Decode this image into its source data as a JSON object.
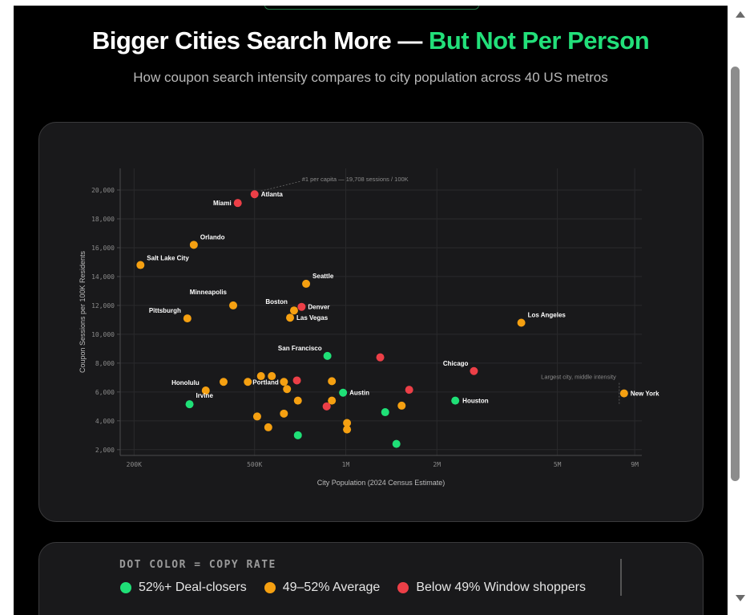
{
  "header": {
    "title_main": "Bigger Cities Search More — ",
    "title_accent": "But Not Per Person",
    "subtitle": "How coupon search intensity compares to city population across 40 US metros"
  },
  "colors": {
    "green": "#1fe077",
    "orange": "#f5a011",
    "red": "#ec3f47",
    "accent": "#22e07a"
  },
  "chart_data": {
    "type": "scatter",
    "xlabel": "City Population (2024 Census Estimate)",
    "ylabel": "Coupon Sessions per 100K Residents",
    "x_scale": "log",
    "xlim": [
      180000,
      9500000
    ],
    "ylim": [
      1600,
      21500
    ],
    "x_ticks": [
      {
        "value": 200000,
        "label": "200K"
      },
      {
        "value": 500000,
        "label": "500K"
      },
      {
        "value": 1000000,
        "label": "1M"
      },
      {
        "value": 2000000,
        "label": "2M"
      },
      {
        "value": 5000000,
        "label": "5M"
      },
      {
        "value": 9000000,
        "label": "9M"
      }
    ],
    "y_ticks": [
      {
        "value": 2000,
        "label": "2,000"
      },
      {
        "value": 4000,
        "label": "4,000"
      },
      {
        "value": 6000,
        "label": "6,000"
      },
      {
        "value": 8000,
        "label": "8,000"
      },
      {
        "value": 10000,
        "label": "10,000"
      },
      {
        "value": 12000,
        "label": "12,000"
      },
      {
        "value": 14000,
        "label": "14,000"
      },
      {
        "value": 16000,
        "label": "16,000"
      },
      {
        "value": 18000,
        "label": "18,000"
      },
      {
        "value": 20000,
        "label": "20,000"
      }
    ],
    "grid": true,
    "annotations": [
      {
        "text": "#1 per capita — 19,708 sessions / 100K"
      },
      {
        "text": "Largest city, middle intensity"
      }
    ],
    "points": [
      {
        "label": "Atlanta",
        "x": 500000,
        "y": 19708,
        "group": "red"
      },
      {
        "label": "Miami",
        "x": 440000,
        "y": 19100,
        "group": "red"
      },
      {
        "label": "Orlando",
        "x": 315000,
        "y": 16200,
        "group": "orange"
      },
      {
        "label": "Salt Lake City",
        "x": 210000,
        "y": 14800,
        "group": "orange"
      },
      {
        "label": "Seattle",
        "x": 740000,
        "y": 13500,
        "group": "orange"
      },
      {
        "label": "Minneapolis",
        "x": 425000,
        "y": 12000,
        "group": "orange"
      },
      {
        "label": "Pittsburgh",
        "x": 300000,
        "y": 11100,
        "group": "orange"
      },
      {
        "label": "Boston",
        "x": 675000,
        "y": 11650,
        "group": "orange"
      },
      {
        "label": "Denver",
        "x": 715000,
        "y": 11900,
        "group": "red"
      },
      {
        "label": "Las Vegas",
        "x": 655000,
        "y": 11150,
        "group": "orange"
      },
      {
        "label": "Los Angeles",
        "x": 3800000,
        "y": 10800,
        "group": "orange"
      },
      {
        "label": "San Francisco",
        "x": 870000,
        "y": 8500,
        "group": "green"
      },
      {
        "label": "",
        "x": 1300000,
        "y": 8400,
        "group": "red"
      },
      {
        "label": "Chicago",
        "x": 2650000,
        "y": 7450,
        "group": "red"
      },
      {
        "label": "New York",
        "x": 8300000,
        "y": 5900,
        "group": "orange"
      },
      {
        "label": "Houston",
        "x": 2300000,
        "y": 5400,
        "group": "green"
      },
      {
        "label": "Honolulu",
        "x": 345000,
        "y": 6100,
        "group": "orange"
      },
      {
        "label": "Irvine",
        "x": 305000,
        "y": 5150,
        "group": "green"
      },
      {
        "label": "Portland",
        "x": 475000,
        "y": 6700,
        "group": "orange"
      },
      {
        "label": "Austin",
        "x": 980000,
        "y": 5950,
        "group": "green"
      },
      {
        "label": "",
        "x": 395000,
        "y": 6700,
        "group": "orange"
      },
      {
        "label": "",
        "x": 525000,
        "y": 7100,
        "group": "orange"
      },
      {
        "label": "",
        "x": 570000,
        "y": 7100,
        "group": "orange"
      },
      {
        "label": "",
        "x": 625000,
        "y": 6700,
        "group": "orange"
      },
      {
        "label": "",
        "x": 690000,
        "y": 6800,
        "group": "red"
      },
      {
        "label": "",
        "x": 640000,
        "y": 6200,
        "group": "orange"
      },
      {
        "label": "",
        "x": 900000,
        "y": 6750,
        "group": "orange"
      },
      {
        "label": "",
        "x": 695000,
        "y": 5400,
        "group": "orange"
      },
      {
        "label": "",
        "x": 900000,
        "y": 5400,
        "group": "orange"
      },
      {
        "label": "",
        "x": 865000,
        "y": 5000,
        "group": "red"
      },
      {
        "label": "",
        "x": 1620000,
        "y": 6150,
        "group": "red"
      },
      {
        "label": "",
        "x": 1530000,
        "y": 5050,
        "group": "orange"
      },
      {
        "label": "",
        "x": 1350000,
        "y": 4600,
        "group": "green"
      },
      {
        "label": "",
        "x": 510000,
        "y": 4300,
        "group": "orange"
      },
      {
        "label": "",
        "x": 625000,
        "y": 4500,
        "group": "orange"
      },
      {
        "label": "",
        "x": 555000,
        "y": 3550,
        "group": "orange"
      },
      {
        "label": "",
        "x": 695000,
        "y": 3000,
        "group": "green"
      },
      {
        "label": "",
        "x": 1010000,
        "y": 3850,
        "group": "orange"
      },
      {
        "label": "",
        "x": 1010000,
        "y": 3400,
        "group": "orange"
      },
      {
        "label": "",
        "x": 1470000,
        "y": 2400,
        "group": "green"
      }
    ]
  },
  "legend": {
    "title": "DOT COLOR = COPY RATE",
    "items": [
      {
        "label": "52%+ Deal-closers",
        "color": "#1fe077"
      },
      {
        "label": "49–52% Average",
        "color": "#f5a011"
      },
      {
        "label": "Below 49% Window shoppers",
        "color": "#ec3f47"
      }
    ]
  }
}
